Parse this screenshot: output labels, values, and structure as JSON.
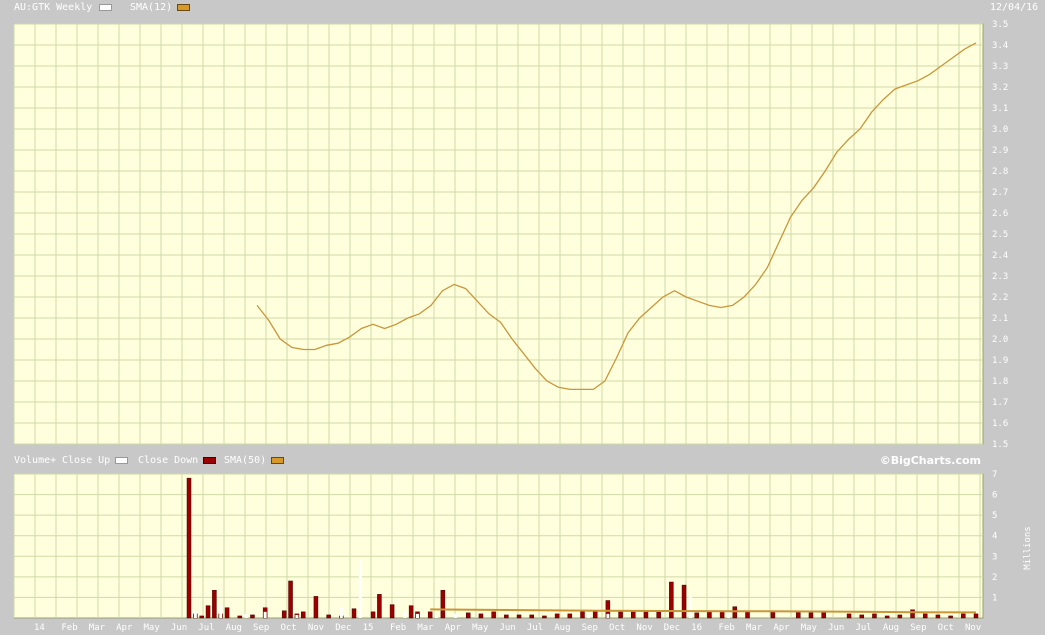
{
  "header": {
    "symbol_label": "AU:GTK Weekly",
    "sma_label": "SMA(12)",
    "date": "12/04/16"
  },
  "volume_header": {
    "title": "Volume+",
    "close_up_label": "Close Up",
    "close_down_label": "Close Down",
    "sma_label": "SMA(50)",
    "brand": "©BigCharts.com"
  },
  "colors": {
    "plot_bg": "#ffffdd",
    "grid": "#cfd9a6",
    "sma": "#c9963a",
    "vol_down": "#9b0000",
    "vol_up": "#ffffff",
    "frame": "#c8c8c8"
  },
  "chart_data": [
    {
      "type": "line",
      "title": "AU:GTK Weekly",
      "ylim": [
        1.5,
        3.5
      ],
      "y_ticks": [
        "1.5",
        "1.6",
        "1.7",
        "1.8",
        "1.9",
        "2.0",
        "2.1",
        "2.2",
        "2.3",
        "2.4",
        "2.5",
        "2.6",
        "2.7",
        "2.8",
        "2.9",
        "3.0",
        "3.1",
        "3.2",
        "3.3",
        "3.4",
        "3.5"
      ],
      "grid": true,
      "series": [
        {
          "name": "SMA(12)",
          "x": [
            0,
            2,
            4,
            6,
            8,
            10,
            12,
            14,
            16,
            18,
            20,
            22,
            24,
            26,
            28,
            30,
            32,
            34,
            36,
            38,
            40,
            42,
            44,
            46,
            48,
            50,
            52,
            54,
            56,
            58,
            60,
            62,
            64,
            66,
            68,
            70,
            72,
            74,
            76,
            78,
            80,
            82,
            84,
            86,
            88,
            90,
            92,
            94,
            96,
            98,
            100,
            102,
            104,
            106,
            108,
            110,
            112,
            114,
            116,
            118,
            120,
            122,
            124
          ],
          "values": [
            2.16,
            2.09,
            2.0,
            1.96,
            1.95,
            1.95,
            1.97,
            1.98,
            2.01,
            2.05,
            2.07,
            2.05,
            2.07,
            2.1,
            2.12,
            2.16,
            2.23,
            2.26,
            2.24,
            2.18,
            2.12,
            2.08,
            2.0,
            1.93,
            1.86,
            1.8,
            1.77,
            1.76,
            1.76,
            1.76,
            1.8,
            1.91,
            2.03,
            2.1,
            2.15,
            2.2,
            2.23,
            2.2,
            2.18,
            2.16,
            2.15,
            2.16,
            2.2,
            2.26,
            2.34,
            2.46,
            2.58,
            2.66,
            2.72,
            2.8,
            2.89,
            2.95,
            3.0,
            3.08,
            3.14,
            3.19,
            3.21,
            3.23,
            3.26,
            3.3,
            3.34,
            3.38,
            3.41
          ]
        }
      ],
      "x_start": 0,
      "x_end": 124
    },
    {
      "type": "bar",
      "title": "Volume+",
      "ylabel": "Millions",
      "ylim": [
        0,
        7
      ],
      "y_ticks": [
        "1",
        "2",
        "3",
        "4",
        "5",
        "6",
        "7"
      ],
      "x_ticks": [
        "14",
        "Feb",
        "Mar",
        "Apr",
        "May",
        "Jun",
        "Jul",
        "Aug",
        "Sep",
        "Oct",
        "Nov",
        "Dec",
        "15",
        "Feb",
        "Mar",
        "Apr",
        "May",
        "Jun",
        "Jul",
        "Aug",
        "Sep",
        "Oct",
        "Nov",
        "Dec",
        "16",
        "Feb",
        "Mar",
        "Apr",
        "May",
        "Jun",
        "Jul",
        "Aug",
        "Sep",
        "Oct",
        "Nov"
      ],
      "series": [
        {
          "name": "Close Down",
          "x": [
            0,
            1,
            2,
            3,
            4,
            5,
            6,
            8,
            10,
            12,
            15,
            16,
            17,
            18,
            20,
            22,
            24,
            26,
            29,
            30,
            32,
            35,
            36,
            38,
            40,
            44,
            46,
            48,
            50,
            52,
            54,
            56,
            58,
            60,
            62,
            64,
            66,
            68,
            70,
            72,
            74,
            76,
            78,
            80,
            82,
            84,
            86,
            88,
            92,
            96,
            98,
            100,
            104,
            106,
            108,
            110,
            112,
            114,
            116,
            118,
            120,
            122,
            124
          ],
          "values": [
            6.8,
            0.2,
            0.1,
            0.6,
            1.35,
            0.2,
            0.5,
            0.1,
            0.15,
            0.5,
            0.35,
            1.8,
            0.2,
            0.3,
            1.05,
            0.15,
            0.1,
            0.45,
            0.3,
            1.15,
            0.65,
            0.6,
            0.3,
            0.3,
            1.35,
            0.25,
            0.2,
            0.3,
            0.15,
            0.15,
            0.15,
            0.1,
            0.2,
            0.2,
            0.3,
            0.3,
            0.85,
            0.3,
            0.3,
            0.3,
            0.3,
            1.75,
            1.6,
            0.25,
            0.3,
            0.35,
            0.55,
            0.3,
            0.3,
            0.3,
            0.25,
            0.3,
            0.2,
            0.15,
            0.2,
            0.1,
            0.15,
            0.4,
            0.2,
            0.15,
            0.1,
            0.2,
            0.2
          ]
        },
        {
          "name": "Close Up",
          "x": [
            1,
            5,
            9,
            12,
            17,
            24,
            27,
            34,
            36,
            39,
            42,
            63,
            66,
            79,
            85
          ],
          "values": [
            0.3,
            0.6,
            0.2,
            0.3,
            0.15,
            0.5,
            2.8,
            0.3,
            0.2,
            0.15,
            0.2,
            0.2,
            0.2,
            1.1,
            0.3
          ]
        },
        {
          "name": "SMA(50)",
          "x": [
            38,
            45,
            55,
            65,
            75,
            85,
            95,
            105,
            115,
            124
          ],
          "values": [
            0.42,
            0.4,
            0.38,
            0.35,
            0.34,
            0.33,
            0.32,
            0.3,
            0.28,
            0.27
          ]
        }
      ],
      "x_start": 0,
      "x_end": 124
    }
  ]
}
